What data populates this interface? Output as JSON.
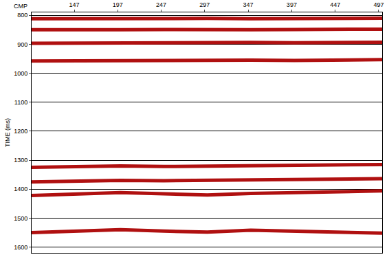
{
  "chart_data": {
    "type": "line",
    "xlabel": "CMP",
    "ylabel": "TIME (ms)",
    "xlim": [
      98,
      501
    ],
    "xticks": [
      147,
      197,
      247,
      297,
      347,
      397,
      447,
      497
    ],
    "ylim": [
      1620,
      790
    ],
    "yticks": [
      800,
      900,
      1000,
      1100,
      1200,
      1300,
      1400,
      1500,
      1600
    ],
    "grid": true,
    "x": [
      98,
      150,
      200,
      250,
      300,
      350,
      400,
      450,
      501
    ],
    "series": [
      {
        "color": "#b01010",
        "values": [
          812,
          811,
          812,
          812,
          811,
          812,
          812,
          811,
          810
        ]
      },
      {
        "color": "#b01010",
        "values": [
          850,
          851,
          850,
          849,
          850,
          850,
          849,
          848,
          848
        ]
      },
      {
        "color": "#b01010",
        "values": [
          897,
          896,
          895,
          896,
          895,
          894,
          895,
          894,
          893
        ]
      },
      {
        "color": "#b01010",
        "values": [
          958,
          957,
          956,
          957,
          956,
          955,
          956,
          955,
          953
        ]
      },
      {
        "color": "#b01010",
        "values": [
          1325,
          1322,
          1320,
          1322,
          1321,
          1320,
          1318,
          1316,
          1315
        ]
      },
      {
        "color": "#b01010",
        "values": [
          1375,
          1372,
          1370,
          1371,
          1370,
          1368,
          1367,
          1366,
          1364
        ]
      },
      {
        "color": "#b01010",
        "values": [
          1422,
          1418,
          1412,
          1416,
          1420,
          1415,
          1412,
          1408,
          1406
        ]
      },
      {
        "color": "#b01010",
        "values": [
          1550,
          1545,
          1540,
          1545,
          1548,
          1542,
          1545,
          1550,
          1552
        ]
      }
    ]
  }
}
